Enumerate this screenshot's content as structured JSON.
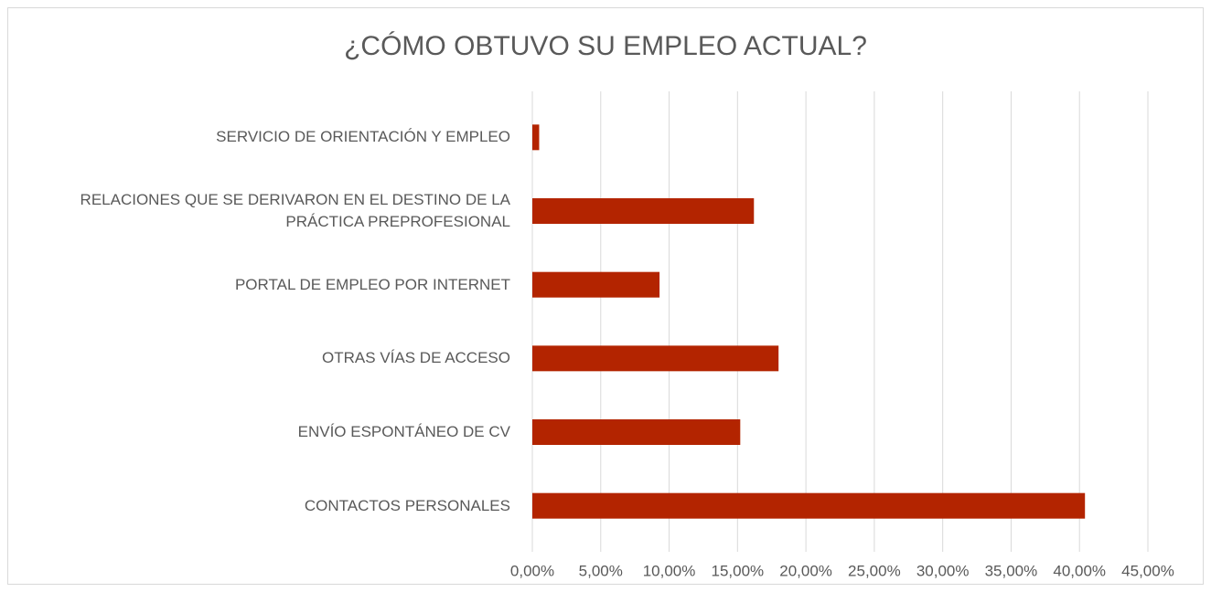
{
  "chart_data": {
    "type": "bar",
    "orientation": "horizontal",
    "title": "¿CÓMO OBTUVO SU EMPLEO ACTUAL?",
    "categories": [
      "SERVICIO DE ORIENTACIÓN Y EMPLEO",
      "RELACIONES QUE SE DERIVARON EN EL DESTINO DE LA PRÁCTICA PREPROFESIONAL",
      "PORTAL DE EMPLEO POR INTERNET",
      "OTRAS VÍAS DE ACCESO",
      "ENVÍO ESPONTÁNEO DE CV",
      "CONTACTOS PERSONALES"
    ],
    "values": [
      0.5,
      16.2,
      9.3,
      18.0,
      15.2,
      40.4
    ],
    "color": "#b32400",
    "xlim": [
      0,
      45
    ],
    "xticks": [
      {
        "value": 0,
        "label": "0,00%"
      },
      {
        "value": 5,
        "label": "5,00%"
      },
      {
        "value": 10,
        "label": "10,00%"
      },
      {
        "value": 15,
        "label": "15,00%"
      },
      {
        "value": 20,
        "label": "20,00%"
      },
      {
        "value": 25,
        "label": "25,00%"
      },
      {
        "value": 30,
        "label": "30,00%"
      },
      {
        "value": 35,
        "label": "35,00%"
      },
      {
        "value": 40,
        "label": "40,00%"
      },
      {
        "value": 45,
        "label": "45,00%"
      }
    ],
    "grid": true
  }
}
